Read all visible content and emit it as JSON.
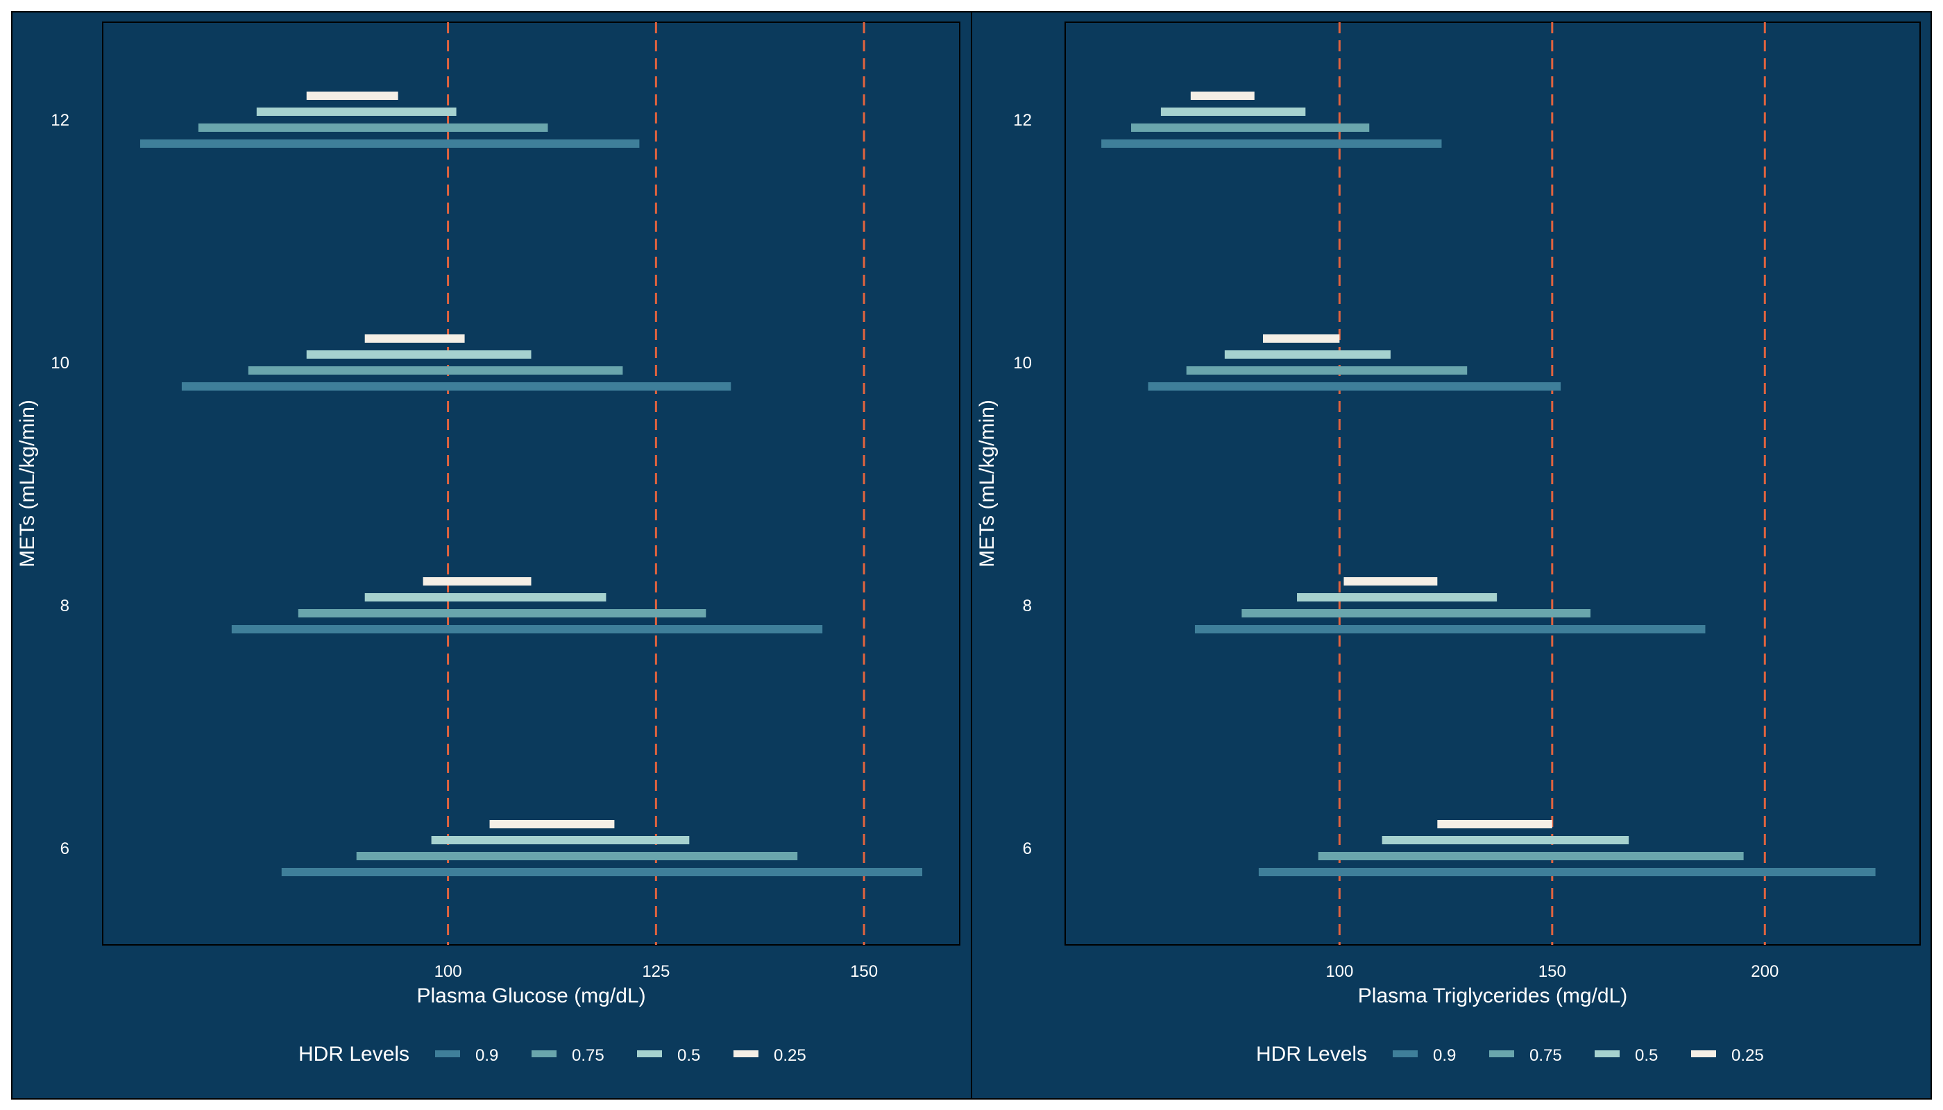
{
  "colors": {
    "page_bg": "#0b3a5c",
    "panel_bg": "#0b3a5c",
    "panel_border": "#000000",
    "text": "#ffffff",
    "ref_line": "#e0633f",
    "hdr_0_9": "#3f7f9a",
    "hdr_0_75": "#6aa6ad",
    "hdr_0_5": "#a6d2cf",
    "hdr_0_25": "#f5efe6"
  },
  "chart_data": [
    {
      "type": "bar",
      "subtype": "hdr-interval",
      "xlabel": "Plasma Glucose (mg/dL)",
      "ylabel": "METs (mL/kg/min)",
      "xlim": [
        58.5,
        161.5
      ],
      "ylim": [
        5.2,
        12.8
      ],
      "xticks": [
        100,
        125,
        150
      ],
      "yticks": [
        6,
        8,
        10,
        12
      ],
      "ref_lines": [
        100,
        125,
        150
      ],
      "legend_title": "HDR Levels",
      "legend_position": "bottom",
      "levels": [
        "0.9",
        "0.75",
        "0.5",
        "0.25"
      ],
      "groups": [
        {
          "y": 6,
          "intervals": {
            "0.9": [
              80,
              157
            ],
            "0.75": [
              89,
              142
            ],
            "0.5": [
              98,
              129
            ],
            "0.25": [
              105,
              120
            ]
          }
        },
        {
          "y": 8,
          "intervals": {
            "0.9": [
              74,
              145
            ],
            "0.75": [
              82,
              131
            ],
            "0.5": [
              90,
              119
            ],
            "0.25": [
              97,
              110
            ]
          }
        },
        {
          "y": 10,
          "intervals": {
            "0.9": [
              68,
              134
            ],
            "0.75": [
              76,
              121
            ],
            "0.5": [
              83,
              110
            ],
            "0.25": [
              90,
              102
            ]
          }
        },
        {
          "y": 12,
          "intervals": {
            "0.9": [
              63,
              123
            ],
            "0.75": [
              70,
              112
            ],
            "0.5": [
              77,
              101
            ],
            "0.25": [
              83,
              94
            ]
          }
        }
      ]
    },
    {
      "type": "bar",
      "subtype": "hdr-interval",
      "xlabel": "Plasma Triglycerides (mg/dL)",
      "ylabel": "METs (mL/kg/min)",
      "xlim": [
        35.5,
        236.5
      ],
      "ylim": [
        5.2,
        12.8
      ],
      "xticks": [
        100,
        150,
        200
      ],
      "yticks": [
        6,
        8,
        10,
        12
      ],
      "ref_lines": [
        100,
        150,
        200
      ],
      "legend_title": "HDR Levels",
      "legend_position": "bottom",
      "levels": [
        "0.9",
        "0.75",
        "0.5",
        "0.25"
      ],
      "groups": [
        {
          "y": 6,
          "intervals": {
            "0.9": [
              81,
              226
            ],
            "0.75": [
              95,
              195
            ],
            "0.5": [
              110,
              168
            ],
            "0.25": [
              123,
              150
            ]
          }
        },
        {
          "y": 8,
          "intervals": {
            "0.9": [
              66,
              186
            ],
            "0.75": [
              77,
              159
            ],
            "0.5": [
              90,
              137
            ],
            "0.25": [
              101,
              123
            ]
          }
        },
        {
          "y": 10,
          "intervals": {
            "0.9": [
              55,
              152
            ],
            "0.75": [
              64,
              130
            ],
            "0.5": [
              73,
              112
            ],
            "0.25": [
              82,
              100
            ]
          }
        },
        {
          "y": 12,
          "intervals": {
            "0.9": [
              44,
              124
            ],
            "0.75": [
              51,
              107
            ],
            "0.5": [
              58,
              92
            ],
            "0.25": [
              65,
              80
            ]
          }
        }
      ]
    }
  ]
}
